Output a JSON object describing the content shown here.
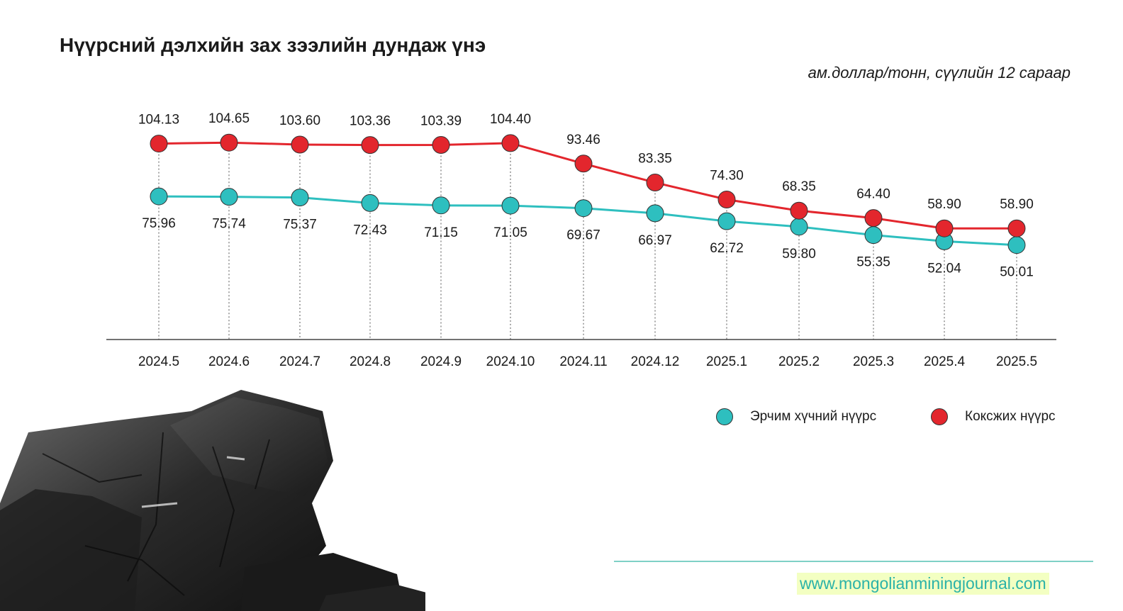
{
  "title": "Нүүрсний дэлхийн зах зээлийн дундаж үнэ",
  "subtitle": "ам.доллар/тонн, сүүлийн 12 сараар",
  "website": "www.mongolianminingjournal.com",
  "colors": {
    "coking": "#e3262d",
    "thermal": "#2ebfbf",
    "footer_line": "#7fd0c6",
    "website_bg": "#f3ffc2",
    "website_text": "#2bb2a8"
  },
  "legend": {
    "thermal_label": "Эрчим хүчний нүүрс",
    "coking_label": "Коксжих нүүрс"
  },
  "chart_data": {
    "type": "line",
    "categories": [
      "2024.5",
      "2024.6",
      "2024.7",
      "2024.8",
      "2024.9",
      "2024.10",
      "2024.11",
      "2024.12",
      "2025.1",
      "2025.2",
      "2025.3",
      "2025.4",
      "2025.5"
    ],
    "series": [
      {
        "name": "Коксжих нүүрс",
        "color": "#e3262d",
        "values": [
          104.13,
          104.65,
          103.6,
          103.36,
          103.39,
          104.4,
          93.46,
          83.35,
          74.3,
          68.35,
          64.4,
          58.9,
          58.9
        ],
        "labels": [
          "104.13",
          "104.65",
          "103.60",
          "103.36",
          "103.39",
          "104.40",
          "93.46",
          "83.35",
          "74.30",
          "68.35",
          "64.40",
          "58.90",
          "58.90"
        ]
      },
      {
        "name": "Эрчим хүчний нүүрс",
        "color": "#2ebfbf",
        "values": [
          75.96,
          75.74,
          75.37,
          72.43,
          71.15,
          71.05,
          69.67,
          66.97,
          62.72,
          59.8,
          55.35,
          52.04,
          50.01
        ],
        "labels": [
          "75.96",
          "75.74",
          "75.37",
          "72.43",
          "71.15",
          "71.05",
          "69.67",
          "66.97",
          "62.72",
          "59.80",
          "55.35",
          "52.04",
          "50.01"
        ]
      }
    ],
    "grid": false,
    "legend_position": "bottom-right"
  }
}
